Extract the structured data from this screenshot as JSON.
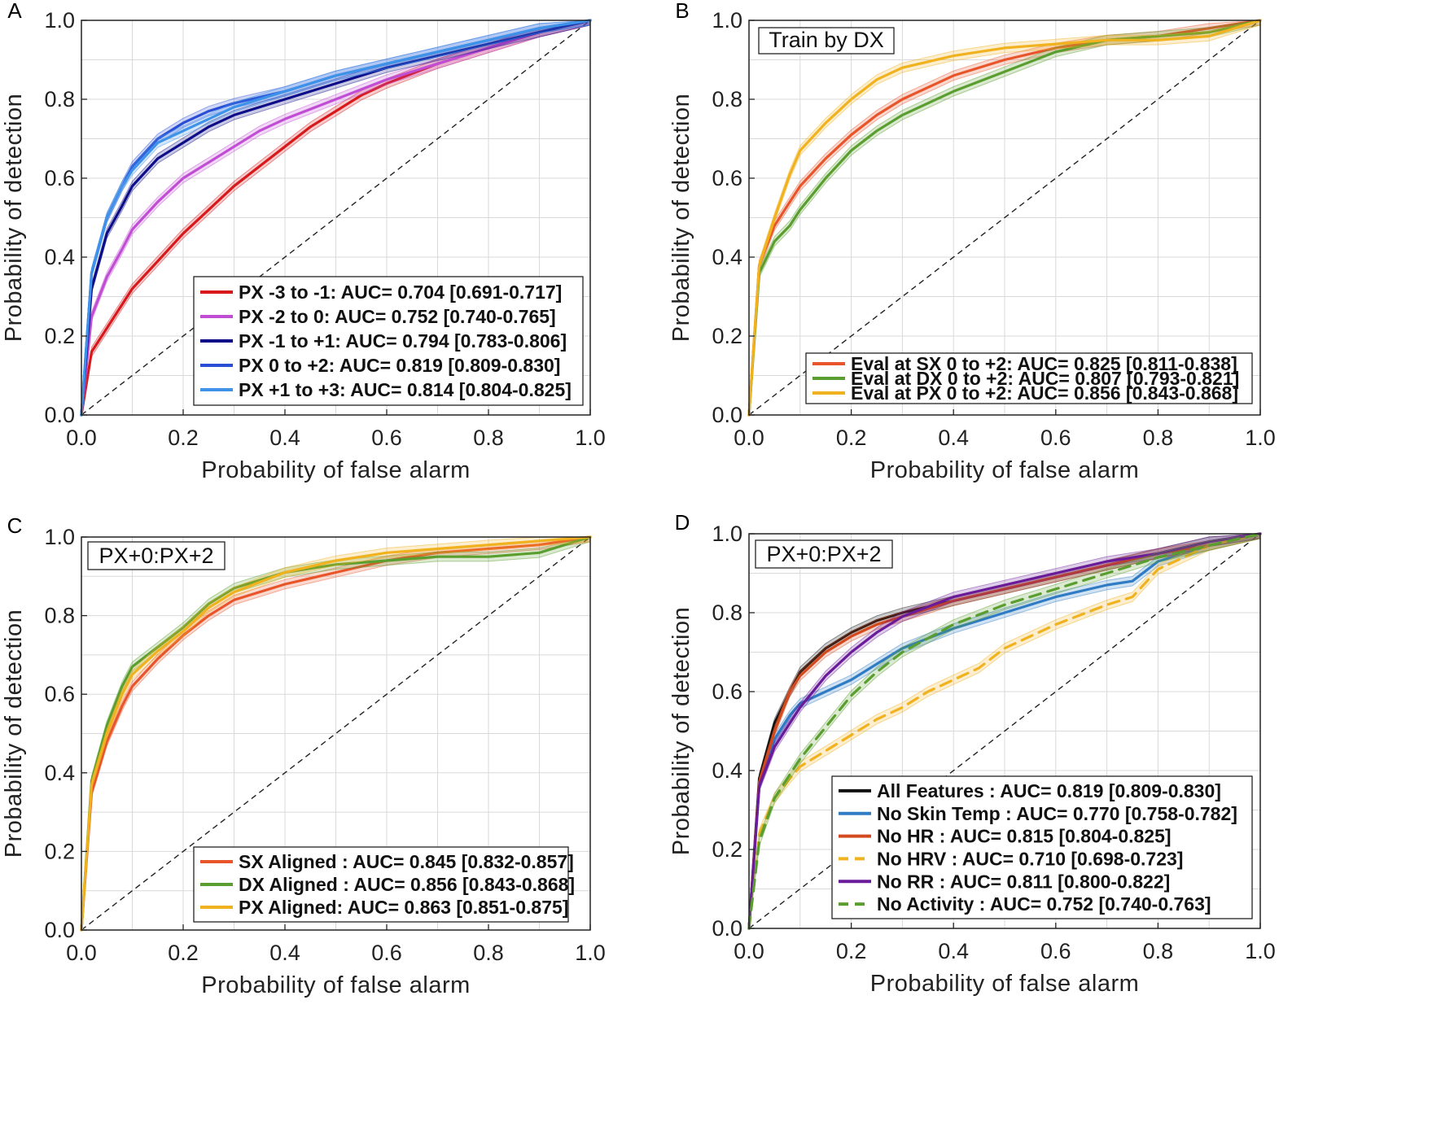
{
  "chart_data": [
    {
      "type": "line",
      "panel": "A",
      "xlabel": "Probability of false alarm",
      "ylabel": "Probability of detection",
      "xlim": [
        0,
        1
      ],
      "ylim": [
        0,
        1
      ],
      "xticks": [
        "0.0",
        "0.2",
        "0.4",
        "0.6",
        "0.8",
        "1.0"
      ],
      "yticks": [
        "0.0",
        "0.2",
        "0.4",
        "0.6",
        "0.8",
        "1.0"
      ],
      "grid": true,
      "legend_position": "bottom-right",
      "annotation": "",
      "series": [
        {
          "name": "PX -3 to -1: AUC= 0.704 [0.691-0.717]",
          "color": "#d7191c",
          "dashed": false,
          "x": [
            0,
            0.02,
            0.05,
            0.08,
            0.1,
            0.15,
            0.2,
            0.25,
            0.3,
            0.35,
            0.4,
            0.45,
            0.5,
            0.55,
            0.6,
            0.7,
            0.8,
            0.9,
            1.0
          ],
          "y": [
            0,
            0.16,
            0.22,
            0.28,
            0.32,
            0.39,
            0.46,
            0.52,
            0.58,
            0.63,
            0.68,
            0.73,
            0.77,
            0.81,
            0.84,
            0.89,
            0.93,
            0.97,
            1.0
          ]
        },
        {
          "name": "PX -2 to 0: AUC= 0.752 [0.740-0.765]",
          "color": "#c04dd4",
          "dashed": false,
          "x": [
            0,
            0.02,
            0.05,
            0.08,
            0.1,
            0.15,
            0.2,
            0.25,
            0.3,
            0.35,
            0.4,
            0.5,
            0.6,
            0.7,
            0.8,
            0.9,
            1.0
          ],
          "y": [
            0,
            0.25,
            0.35,
            0.42,
            0.47,
            0.54,
            0.6,
            0.64,
            0.68,
            0.72,
            0.75,
            0.8,
            0.85,
            0.89,
            0.93,
            0.97,
            1.0
          ]
        },
        {
          "name": "PX -1 to +1: AUC= 0.794 [0.783-0.806]",
          "color": "#0d0d8a",
          "dashed": false,
          "x": [
            0,
            0.02,
            0.05,
            0.08,
            0.1,
            0.15,
            0.2,
            0.25,
            0.3,
            0.4,
            0.5,
            0.6,
            0.7,
            0.8,
            0.9,
            1.0
          ],
          "y": [
            0,
            0.32,
            0.46,
            0.53,
            0.58,
            0.65,
            0.69,
            0.73,
            0.76,
            0.8,
            0.84,
            0.88,
            0.91,
            0.94,
            0.97,
            1.0
          ]
        },
        {
          "name": "PX 0 to +2: AUC= 0.819 [0.809-0.830]",
          "color": "#2a4fd6",
          "dashed": false,
          "x": [
            0,
            0.02,
            0.05,
            0.08,
            0.1,
            0.15,
            0.2,
            0.25,
            0.3,
            0.4,
            0.5,
            0.6,
            0.7,
            0.8,
            0.9,
            1.0
          ],
          "y": [
            0,
            0.36,
            0.5,
            0.58,
            0.63,
            0.7,
            0.74,
            0.77,
            0.79,
            0.82,
            0.86,
            0.89,
            0.92,
            0.95,
            0.98,
            1.0
          ]
        },
        {
          "name": "PX +1 to +3: AUC= 0.814 [0.804-0.825]",
          "color": "#3e92e8",
          "dashed": false,
          "x": [
            0,
            0.02,
            0.05,
            0.08,
            0.1,
            0.15,
            0.2,
            0.25,
            0.3,
            0.4,
            0.5,
            0.6,
            0.7,
            0.8,
            0.9,
            1.0
          ],
          "y": [
            0,
            0.36,
            0.5,
            0.58,
            0.62,
            0.69,
            0.72,
            0.75,
            0.78,
            0.82,
            0.86,
            0.89,
            0.92,
            0.95,
            0.98,
            1.0
          ]
        }
      ]
    },
    {
      "type": "line",
      "panel": "B",
      "xlabel": "Probability of false alarm",
      "ylabel": "Probability of detection",
      "xlim": [
        0,
        1
      ],
      "ylim": [
        0,
        1
      ],
      "xticks": [
        "0.0",
        "0.2",
        "0.4",
        "0.6",
        "0.8",
        "1.0"
      ],
      "yticks": [
        "0.0",
        "0.2",
        "0.4",
        "0.6",
        "0.8",
        "1.0"
      ],
      "grid": true,
      "legend_position": "bottom-right",
      "annotation": "Train by DX",
      "series": [
        {
          "name": "Eval at SX 0 to +2: AUC= 0.825 [0.811-0.838]",
          "color": "#e8552b",
          "dashed": false,
          "x": [
            0,
            0.02,
            0.05,
            0.08,
            0.1,
            0.15,
            0.2,
            0.25,
            0.3,
            0.4,
            0.5,
            0.6,
            0.7,
            0.8,
            0.9,
            1.0
          ],
          "y": [
            0,
            0.38,
            0.48,
            0.54,
            0.58,
            0.65,
            0.71,
            0.76,
            0.8,
            0.86,
            0.9,
            0.93,
            0.95,
            0.96,
            0.98,
            1.0
          ]
        },
        {
          "name": "Eval at DX 0 to +2: AUC= 0.807 [0.793-0.821]",
          "color": "#5a9e2f",
          "dashed": false,
          "x": [
            0,
            0.02,
            0.05,
            0.08,
            0.1,
            0.15,
            0.2,
            0.25,
            0.3,
            0.4,
            0.5,
            0.6,
            0.7,
            0.8,
            0.9,
            1.0
          ],
          "y": [
            0,
            0.36,
            0.44,
            0.48,
            0.52,
            0.6,
            0.67,
            0.72,
            0.76,
            0.82,
            0.87,
            0.92,
            0.95,
            0.96,
            0.97,
            1.0
          ]
        },
        {
          "name": "Eval at PX 0 to +2: AUC= 0.856 [0.843-0.868]",
          "color": "#f0b21e",
          "dashed": false,
          "x": [
            0,
            0.02,
            0.05,
            0.08,
            0.1,
            0.15,
            0.2,
            0.25,
            0.3,
            0.4,
            0.5,
            0.6,
            0.7,
            0.8,
            0.9,
            1.0
          ],
          "y": [
            0,
            0.38,
            0.5,
            0.61,
            0.67,
            0.74,
            0.8,
            0.85,
            0.88,
            0.91,
            0.93,
            0.94,
            0.95,
            0.95,
            0.96,
            1.0
          ]
        }
      ]
    },
    {
      "type": "line",
      "panel": "C",
      "xlabel": "Probability of false alarm",
      "ylabel": "Probability of detection",
      "xlim": [
        0,
        1
      ],
      "ylim": [
        0,
        1
      ],
      "xticks": [
        "0.0",
        "0.2",
        "0.4",
        "0.6",
        "0.8",
        "1.0"
      ],
      "yticks": [
        "0.0",
        "0.2",
        "0.4",
        "0.6",
        "0.8",
        "1.0"
      ],
      "grid": true,
      "legend_position": "bottom-right",
      "annotation": "PX+0:PX+2",
      "series": [
        {
          "name": "SX Aligned : AUC= 0.845 [0.832-0.857]",
          "color": "#e8552b",
          "dashed": false,
          "x": [
            0,
            0.02,
            0.05,
            0.08,
            0.1,
            0.15,
            0.2,
            0.25,
            0.3,
            0.4,
            0.5,
            0.6,
            0.7,
            0.8,
            0.9,
            1.0
          ],
          "y": [
            0,
            0.35,
            0.48,
            0.57,
            0.62,
            0.69,
            0.75,
            0.8,
            0.84,
            0.88,
            0.91,
            0.94,
            0.96,
            0.97,
            0.98,
            1.0
          ]
        },
        {
          "name": "DX Aligned : AUC= 0.856 [0.843-0.868]",
          "color": "#5a9e2f",
          "dashed": false,
          "x": [
            0,
            0.02,
            0.05,
            0.08,
            0.1,
            0.15,
            0.2,
            0.25,
            0.3,
            0.4,
            0.5,
            0.6,
            0.7,
            0.8,
            0.9,
            1.0
          ],
          "y": [
            0,
            0.38,
            0.52,
            0.62,
            0.67,
            0.72,
            0.77,
            0.83,
            0.87,
            0.91,
            0.93,
            0.94,
            0.95,
            0.95,
            0.96,
            1.0
          ]
        },
        {
          "name": "PX Aligned: AUC= 0.863 [0.851-0.875]",
          "color": "#f0b21e",
          "dashed": false,
          "x": [
            0,
            0.02,
            0.05,
            0.08,
            0.1,
            0.15,
            0.2,
            0.25,
            0.3,
            0.4,
            0.5,
            0.6,
            0.7,
            0.8,
            0.9,
            1.0
          ],
          "y": [
            0,
            0.37,
            0.5,
            0.6,
            0.65,
            0.71,
            0.76,
            0.82,
            0.86,
            0.91,
            0.94,
            0.96,
            0.97,
            0.98,
            0.99,
            1.0
          ]
        }
      ]
    },
    {
      "type": "line",
      "panel": "D",
      "xlabel": "Probability of false alarm",
      "ylabel": "Probability of detection",
      "xlim": [
        0,
        1
      ],
      "ylim": [
        0,
        1
      ],
      "xticks": [
        "0.0",
        "0.2",
        "0.4",
        "0.6",
        "0.8",
        "1.0"
      ],
      "yticks": [
        "0.0",
        "0.2",
        "0.4",
        "0.6",
        "0.8",
        "1.0"
      ],
      "grid": true,
      "legend_position": "bottom-right",
      "annotation": "PX+0:PX+2",
      "series": [
        {
          "name": "All Features : AUC= 0.819 [0.809-0.830]",
          "color": "#111111",
          "dashed": false,
          "x": [
            0,
            0.02,
            0.05,
            0.08,
            0.1,
            0.15,
            0.2,
            0.25,
            0.3,
            0.4,
            0.5,
            0.6,
            0.7,
            0.8,
            0.9,
            1.0
          ],
          "y": [
            0,
            0.38,
            0.52,
            0.6,
            0.65,
            0.71,
            0.75,
            0.78,
            0.8,
            0.83,
            0.86,
            0.89,
            0.92,
            0.95,
            0.98,
            1.0
          ]
        },
        {
          "name": "No Skin Temp : AUC= 0.770 [0.758-0.782]",
          "color": "#2f7cc4",
          "dashed": false,
          "x": [
            0,
            0.02,
            0.05,
            0.08,
            0.1,
            0.15,
            0.2,
            0.25,
            0.3,
            0.4,
            0.5,
            0.6,
            0.7,
            0.75,
            0.8,
            0.9,
            1.0
          ],
          "y": [
            0,
            0.36,
            0.48,
            0.54,
            0.57,
            0.6,
            0.63,
            0.67,
            0.71,
            0.76,
            0.8,
            0.84,
            0.87,
            0.88,
            0.93,
            0.97,
            1.0
          ]
        },
        {
          "name": "No HR : AUC= 0.815 [0.804-0.825]",
          "color": "#d24a1e",
          "dashed": false,
          "x": [
            0,
            0.02,
            0.05,
            0.08,
            0.1,
            0.15,
            0.2,
            0.25,
            0.3,
            0.4,
            0.5,
            0.6,
            0.7,
            0.8,
            0.9,
            1.0
          ],
          "y": [
            0,
            0.37,
            0.5,
            0.6,
            0.64,
            0.7,
            0.74,
            0.77,
            0.79,
            0.83,
            0.86,
            0.89,
            0.92,
            0.95,
            0.97,
            1.0
          ]
        },
        {
          "name": "No HRV : AUC= 0.710 [0.698-0.723]",
          "color": "#f0b21e",
          "dashed": true,
          "x": [
            0,
            0.02,
            0.05,
            0.08,
            0.1,
            0.15,
            0.2,
            0.25,
            0.3,
            0.35,
            0.4,
            0.45,
            0.5,
            0.6,
            0.7,
            0.75,
            0.8,
            0.9,
            1.0
          ],
          "y": [
            0,
            0.24,
            0.33,
            0.38,
            0.41,
            0.45,
            0.49,
            0.53,
            0.56,
            0.6,
            0.63,
            0.66,
            0.71,
            0.77,
            0.82,
            0.84,
            0.91,
            0.97,
            1.0
          ]
        },
        {
          "name": "No RR : AUC= 0.811 [0.800-0.822]",
          "color": "#6a1b9a",
          "dashed": false,
          "x": [
            0,
            0.02,
            0.05,
            0.08,
            0.1,
            0.15,
            0.2,
            0.25,
            0.3,
            0.4,
            0.5,
            0.6,
            0.7,
            0.8,
            0.9,
            1.0
          ],
          "y": [
            0,
            0.36,
            0.46,
            0.52,
            0.56,
            0.64,
            0.7,
            0.75,
            0.79,
            0.84,
            0.87,
            0.9,
            0.93,
            0.95,
            0.98,
            1.0
          ]
        },
        {
          "name": "No Activity : AUC= 0.752 [0.740-0.763]",
          "color": "#5a9e2f",
          "dashed": true,
          "x": [
            0,
            0.02,
            0.05,
            0.08,
            0.1,
            0.15,
            0.2,
            0.25,
            0.3,
            0.4,
            0.5,
            0.6,
            0.7,
            0.8,
            0.9,
            1.0
          ],
          "y": [
            0,
            0.22,
            0.33,
            0.39,
            0.43,
            0.51,
            0.59,
            0.65,
            0.7,
            0.77,
            0.82,
            0.86,
            0.9,
            0.94,
            0.97,
            1.0
          ]
        }
      ]
    }
  ]
}
